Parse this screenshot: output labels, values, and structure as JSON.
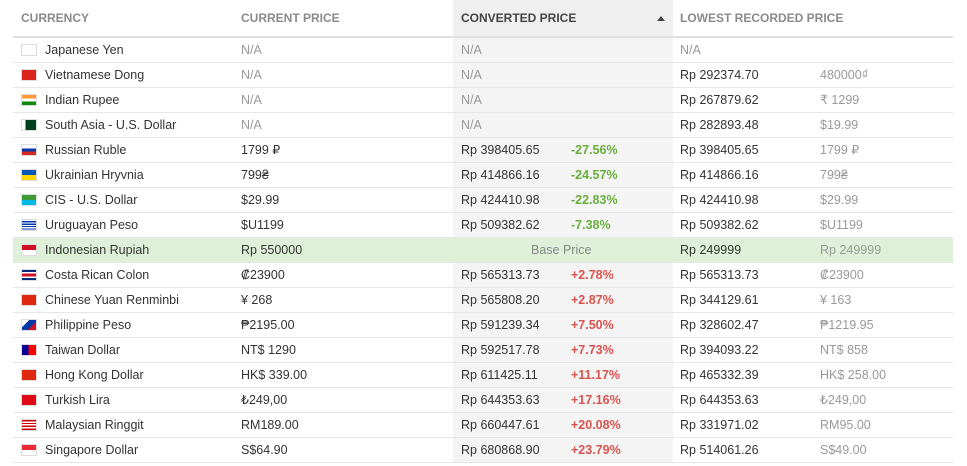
{
  "header": {
    "columns": [
      "CURRENCY",
      "CURRENT PRICE",
      "CONVERTED PRICE",
      "LOWEST RECORDED PRICE"
    ]
  },
  "table": {
    "rows": [
      {
        "currency": "Japanese Yen",
        "current": "N/A",
        "converted": "N/A",
        "lowest": "N/A"
      },
      {
        "currency": "Vietnamese Dong",
        "current": "N/A",
        "converted": "N/A",
        "lowest": "Rp 292374.70",
        "lowest_local": "480000₫"
      },
      {
        "currency": "Indian Rupee",
        "current": "N/A",
        "converted": "N/A",
        "lowest": "Rp 267879.62",
        "lowest_local": "₹ 1299"
      },
      {
        "currency": "South Asia - U.S. Dollar",
        "current": "N/A",
        "converted": "N/A",
        "lowest": "Rp 282893.48",
        "lowest_local": "$19.99"
      },
      {
        "currency": "Russian Ruble",
        "current": "1799 ₽",
        "converted": "Rp 398405.65",
        "change": "-27.56%",
        "lowest": "Rp 398405.65",
        "lowest_local": "1799 ₽"
      },
      {
        "currency": "Ukrainian Hryvnia",
        "current": "799₴",
        "converted": "Rp 414866.16",
        "change": "-24.57%",
        "lowest": "Rp 414866.16",
        "lowest_local": "799₴"
      },
      {
        "currency": "CIS - U.S. Dollar",
        "current": "$29.99",
        "converted": "Rp 424410.98",
        "change": "-22.83%",
        "lowest": "Rp 424410.98",
        "lowest_local": "$29.99"
      },
      {
        "currency": "Uruguayan Peso",
        "current": "$U1199",
        "converted": "Rp 509382.62",
        "change": "-7.38%",
        "lowest": "Rp 509382.62",
        "lowest_local": "$U1199"
      },
      {
        "currency": "Indonesian Rupiah",
        "current": "Rp 550000",
        "base": "Base Price",
        "lowest": "Rp 249999",
        "lowest_local": "Rp 249999"
      },
      {
        "currency": "Costa Rican Colon",
        "current": "₡23900",
        "converted": "Rp 565313.73",
        "change": "+2.78%",
        "lowest": "Rp 565313.73",
        "lowest_local": "₡23900"
      },
      {
        "currency": "Chinese Yuan Renminbi",
        "current": "¥ 268",
        "converted": "Rp 565808.20",
        "change": "+2.87%",
        "lowest": "Rp 344129.61",
        "lowest_local": "¥ 163"
      },
      {
        "currency": "Philippine Peso",
        "current": "₱2195.00",
        "converted": "Rp 591239.34",
        "change": "+7.50%",
        "lowest": "Rp 328602.47",
        "lowest_local": "₱1219.95"
      },
      {
        "currency": "Taiwan Dollar",
        "current": "NT$ 1290",
        "converted": "Rp 592517.78",
        "change": "+7.73%",
        "lowest": "Rp 394093.22",
        "lowest_local": "NT$ 858"
      },
      {
        "currency": "Hong Kong Dollar",
        "current": "HK$ 339.00",
        "converted": "Rp 611425.11",
        "change": "+11.17%",
        "lowest": "Rp 465332.39",
        "lowest_local": "HK$ 258.00"
      },
      {
        "currency": "Turkish Lira",
        "current": "₺249,00",
        "converted": "Rp 644353.63",
        "change": "+17.16%",
        "lowest": "Rp 644353.63",
        "lowest_local": "₺249,00"
      },
      {
        "currency": "Malaysian Ringgit",
        "current": "RM189.00",
        "converted": "Rp 660447.61",
        "change": "+20.08%",
        "lowest": "Rp 331971.02",
        "lowest_local": "RM95.00"
      },
      {
        "currency": "Singapore Dollar",
        "current": "S$64.90",
        "converted": "Rp 680868.90",
        "change": "+23.79%",
        "lowest": "Rp 514061.26",
        "lowest_local": "S$49.00"
      }
    ]
  }
}
